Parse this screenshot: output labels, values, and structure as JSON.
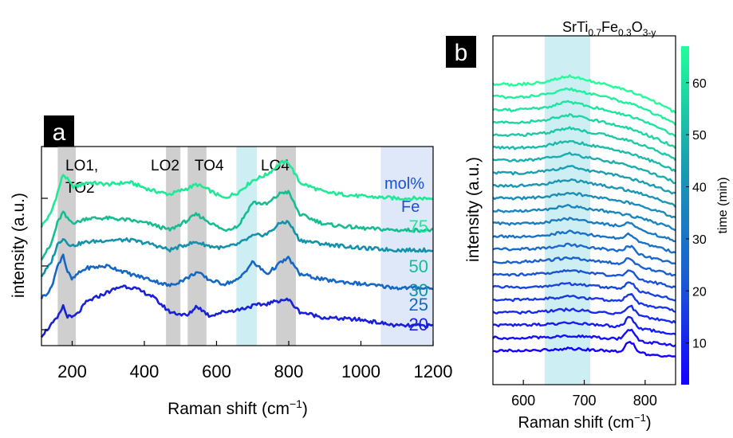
{
  "panels": {
    "a": {
      "label": "a",
      "chart_data": {
        "type": "line",
        "xlabel": "Raman shift (cm",
        "xlabel_sup": "−1",
        "xlabel_end": ")",
        "ylabel": "intensity (a.u.)",
        "xlim": [
          115,
          1200
        ],
        "xticks": [
          200,
          400,
          600,
          800,
          1000,
          1200
        ],
        "y_unit_label": "a.u.",
        "mol_label_1": "mol%",
        "mol_label_2": "Fe",
        "bands": [
          {
            "label": "LO1,",
            "label2": "TO2",
            "from": 160,
            "to": 210,
            "color": "#cfcfcf"
          },
          {
            "label": "LO2",
            "from": 460,
            "to": 500,
            "color": "#cfcfcf"
          },
          {
            "label": "TO4",
            "from": 520,
            "to": 572,
            "color": "#cfcfcf"
          },
          {
            "label": "",
            "from": 655,
            "to": 712,
            "color": "#cdeef3"
          },
          {
            "label": "LO4",
            "from": 765,
            "to": 820,
            "color": "#cfcfcf"
          },
          {
            "label": "",
            "from": 1055,
            "to": 1200,
            "color": "#dfe8f8"
          }
        ],
        "series": [
          {
            "name": "75",
            "color": "#1fe896",
            "offset": 0.0,
            "x": [
              115,
              140,
              160,
              175,
              185,
              200,
              215,
              240,
              300,
              360,
              420,
              470,
              520,
              545,
              580,
              620,
              660,
              700,
              740,
              780,
              800,
              830,
              900,
              1000,
              1100,
              1200
            ],
            "y": [
              0.6,
              0.66,
              0.77,
              0.86,
              0.84,
              0.8,
              0.8,
              0.82,
              0.81,
              0.82,
              0.78,
              0.76,
              0.79,
              0.81,
              0.78,
              0.74,
              0.77,
              0.83,
              0.86,
              0.92,
              0.92,
              0.82,
              0.77,
              0.75,
              0.74,
              0.74
            ]
          },
          {
            "name": "50",
            "color": "#16bd91",
            "offset": 0.0,
            "x": [
              115,
              140,
              160,
              175,
              185,
              200,
              215,
              240,
              300,
              360,
              420,
              470,
              520,
              545,
              580,
              620,
              660,
              700,
              740,
              780,
              800,
              830,
              900,
              1000,
              1100,
              1200
            ],
            "y": [
              0.44,
              0.5,
              0.62,
              0.67,
              0.64,
              0.62,
              0.62,
              0.64,
              0.64,
              0.63,
              0.61,
              0.58,
              0.63,
              0.66,
              0.62,
              0.58,
              0.6,
              0.72,
              0.71,
              0.77,
              0.77,
              0.66,
              0.61,
              0.59,
              0.58,
              0.58
            ]
          },
          {
            "name": "30",
            "color": "#1492ab",
            "offset": 0.0,
            "x": [
              115,
              140,
              160,
              175,
              185,
              200,
              215,
              240,
              300,
              360,
              420,
              470,
              520,
              545,
              580,
              620,
              660,
              700,
              740,
              780,
              800,
              830,
              900,
              1000,
              1100,
              1200
            ],
            "y": [
              0.35,
              0.41,
              0.51,
              0.54,
              0.52,
              0.5,
              0.51,
              0.52,
              0.53,
              0.53,
              0.51,
              0.48,
              0.51,
              0.52,
              0.5,
              0.49,
              0.51,
              0.55,
              0.56,
              0.62,
              0.62,
              0.53,
              0.51,
              0.49,
              0.48,
              0.48
            ]
          },
          {
            "name": "25",
            "color": "#1667c4",
            "offset": 0.0,
            "x": [
              115,
              140,
              160,
              175,
              185,
              200,
              215,
              240,
              300,
              360,
              420,
              470,
              520,
              545,
              580,
              620,
              660,
              700,
              740,
              780,
              800,
              830,
              900,
              1000,
              1100,
              1200
            ],
            "y": [
              0.24,
              0.28,
              0.4,
              0.46,
              0.38,
              0.33,
              0.36,
              0.39,
              0.4,
              0.36,
              0.33,
              0.3,
              0.34,
              0.37,
              0.33,
              0.31,
              0.33,
              0.42,
              0.36,
              0.42,
              0.44,
              0.36,
              0.33,
              0.31,
              0.29,
              0.29
            ]
          },
          {
            "name": "20",
            "color": "#1a1fd8",
            "offset": 0.0,
            "x": [
              115,
              140,
              160,
              175,
              185,
              200,
              215,
              240,
              300,
              340,
              370,
              420,
              470,
              520,
              545,
              580,
              620,
              660,
              700,
              740,
              780,
              800,
              830,
              900,
              1000,
              1100,
              1200
            ],
            "y": [
              0.05,
              0.1,
              0.14,
              0.2,
              0.15,
              0.14,
              0.16,
              0.22,
              0.27,
              0.3,
              0.29,
              0.25,
              0.17,
              0.15,
              0.2,
              0.15,
              0.17,
              0.18,
              0.2,
              0.21,
              0.23,
              0.23,
              0.17,
              0.14,
              0.13,
              0.1,
              0.1
            ]
          }
        ]
      }
    },
    "b": {
      "label": "b",
      "title": "SrTi",
      "title_sub1": "0.7",
      "title_mid": "Fe",
      "title_sub2": "0.3",
      "title_mid2": "O",
      "title_sub3": "3-y",
      "chart_data": {
        "type": "line",
        "xlabel": "Raman shift (cm",
        "xlabel_sup": "−1",
        "xlabel_end": ")",
        "ylabel": "intensity (a.u.)",
        "xlim": [
          550,
          850
        ],
        "xticks": [
          600,
          700,
          800
        ],
        "band": {
          "from": 635,
          "to": 710,
          "color": "#cdeef3"
        },
        "colorbar": {
          "label": "time (min)",
          "ticks": [
            10,
            20,
            30,
            40,
            50,
            60
          ],
          "range": [
            2,
            67
          ],
          "colors": [
            "#1400ff",
            "#1a60d0",
            "#1a9fb0",
            "#20ff9a"
          ]
        },
        "n_spectra": 22,
        "spectrum_shape_x": [
          550,
          580,
          610,
          640,
          660,
          675,
          690,
          710,
          730,
          750,
          770,
          790,
          810,
          830,
          850
        ],
        "spectrum_shape_y": [
          0.0,
          -0.01,
          0.0,
          0.02,
          0.05,
          0.07,
          0.05,
          0.02,
          0.0,
          -0.03,
          -0.06,
          -0.1,
          -0.15,
          -0.2,
          -0.26
        ]
      }
    }
  }
}
